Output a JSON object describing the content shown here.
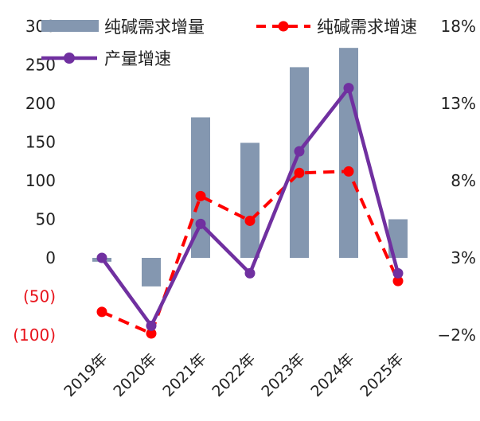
{
  "chart_data": {
    "type": "bar",
    "categories": [
      "2019年",
      "2020年",
      "2021年",
      "2022年",
      "2023年",
      "2024年",
      "2025年"
    ],
    "series": [
      {
        "name": "纯碱需求增量",
        "kind": "bar",
        "axis": "left",
        "color": "#8497b0",
        "values": [
          -5,
          -37,
          182,
          149,
          247,
          272,
          50
        ]
      },
      {
        "name": "纯碱需求增速",
        "kind": "line",
        "axis": "right",
        "style": "dashed",
        "color": "#ff0000",
        "values": [
          -0.5,
          -1.9,
          7.0,
          5.4,
          8.5,
          8.6,
          1.5
        ]
      },
      {
        "name": "产量增速",
        "kind": "line",
        "axis": "right",
        "style": "solid",
        "color": "#7030a0",
        "values": [
          3.0,
          -1.4,
          5.2,
          2.0,
          9.9,
          14.0,
          2.0
        ]
      }
    ],
    "y_left": {
      "ylim": [
        -100,
        300
      ],
      "ticks": [
        300,
        250,
        200,
        150,
        100,
        50,
        0,
        -50,
        -100
      ],
      "tick_labels": [
        "300",
        "250",
        "200",
        "150",
        "100",
        "50",
        "0",
        "(50)",
        "(100)"
      ],
      "negative_color": "#e8141c"
    },
    "y_right": {
      "ylim": [
        -2,
        18
      ],
      "ticks": [
        18,
        13,
        8,
        3,
        -2
      ],
      "tick_labels": [
        "18%",
        "13%",
        "8%",
        "3%",
        "−2%"
      ]
    },
    "grid": false,
    "legend": {
      "placement": "top",
      "entries": [
        "纯碱需求增量",
        "纯碱需求增速",
        "产量增速"
      ]
    }
  }
}
